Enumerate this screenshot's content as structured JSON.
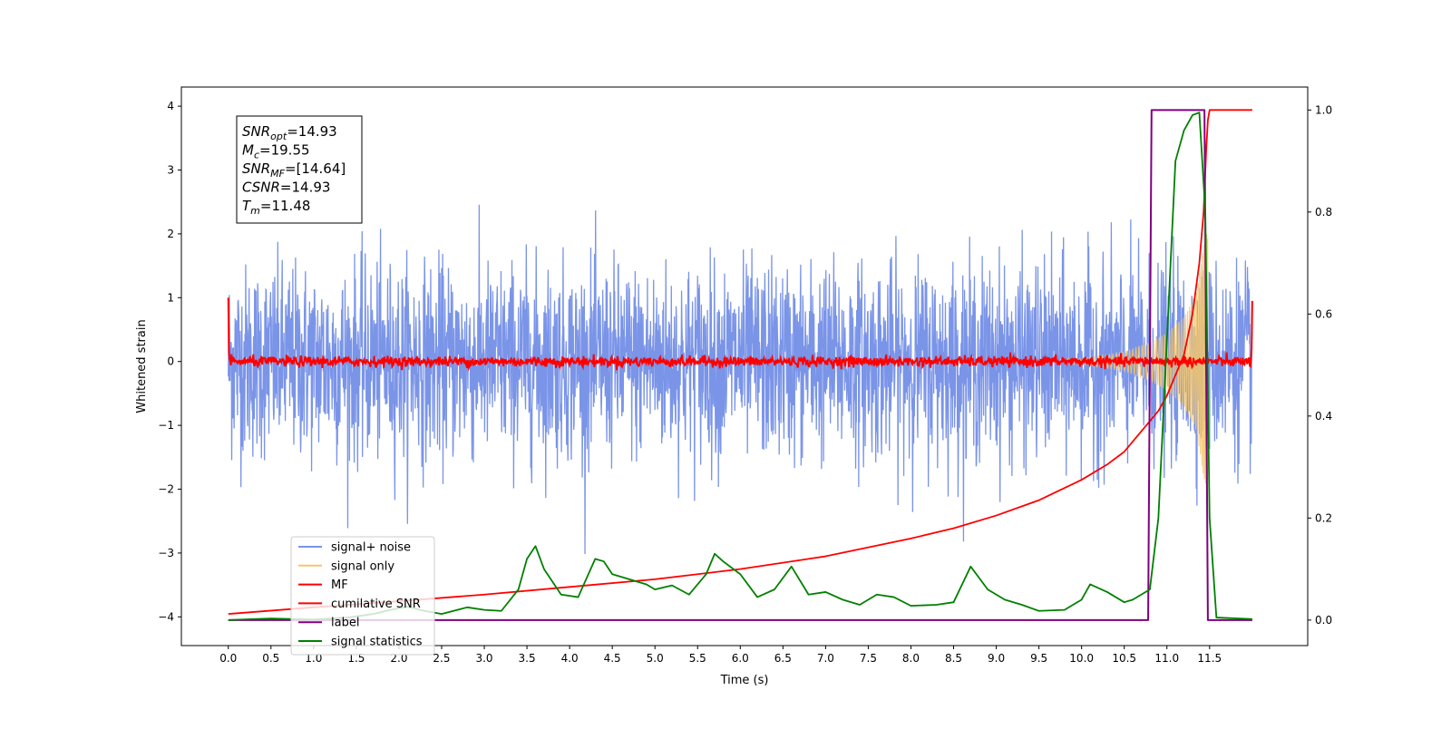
{
  "chart_data": {
    "type": "line",
    "xlabel": "Time (s)",
    "ylabel": "Whitened strain",
    "xlim": [
      -0.55,
      12.65
    ],
    "ylim_left": [
      -4.45,
      4.3
    ],
    "ylim_right": [
      -0.05,
      1.045
    ],
    "x_ticks": [
      0.0,
      0.5,
      1.0,
      1.5,
      2.0,
      2.5,
      3.0,
      3.5,
      4.0,
      4.5,
      5.0,
      5.5,
      6.0,
      6.5,
      7.0,
      7.5,
      8.0,
      8.5,
      9.0,
      9.5,
      10.0,
      10.5,
      11.0,
      11.5
    ],
    "x_tick_labels": [
      "0.0",
      "0.5",
      "1.0",
      "1.5",
      "2.0",
      "2.5",
      "3.0",
      "3.5",
      "4.0",
      "4.5",
      "5.0",
      "5.5",
      "6.0",
      "6.5",
      "7.0",
      "7.5",
      "8.0",
      "8.5",
      "9.0",
      "9.5",
      "10.0",
      "10.5",
      "11.0",
      "11.5"
    ],
    "y_ticks_left": [
      -4,
      -3,
      -2,
      -1,
      0,
      1,
      2,
      3,
      4
    ],
    "y_tick_labels_left": [
      "−4",
      "−3",
      "−2",
      "−1",
      "0",
      "1",
      "2",
      "3",
      "4"
    ],
    "y_ticks_right": [
      0.0,
      0.2,
      0.4,
      0.6,
      0.8,
      1.0
    ],
    "y_tick_labels_right": [
      "0.0",
      "0.2",
      "0.4",
      "0.6",
      "0.8",
      "1.0"
    ],
    "grid": false,
    "legend_position": "bottom-left",
    "annotation": {
      "lines": [
        {
          "base": "SNR",
          "sub": "opt",
          "value": "=14.93"
        },
        {
          "base": "M",
          "sub": "c",
          "value": "=19.55"
        },
        {
          "base": "SNR",
          "sub": "MF",
          "value": "=[14.64]"
        },
        {
          "base": "CSNR",
          "sub": "",
          "value": "=14.93"
        },
        {
          "base": "T",
          "sub": "m",
          "value": "=11.48"
        }
      ]
    },
    "series": [
      {
        "name": "signal+ noise",
        "axis": "left",
        "color": "#7a94e8",
        "noise_sigma": 0.75,
        "x_range": [
          0.0,
          12.0
        ]
      },
      {
        "name": "signal only",
        "axis": "left",
        "color": "#f5c56a",
        "chirp_envelope": [
          [
            10.0,
            0.05
          ],
          [
            10.5,
            0.15
          ],
          [
            10.8,
            0.3
          ],
          [
            11.0,
            0.45
          ],
          [
            11.2,
            0.7
          ],
          [
            11.35,
            1.1
          ],
          [
            11.45,
            2.0
          ]
        ]
      },
      {
        "name": "MF",
        "axis": "left",
        "color": "#ff0000",
        "noise_sigma": 0.04,
        "x_range": [
          0.0,
          12.0
        ],
        "edge_values": [
          [
            0.0,
            1.0
          ],
          [
            12.0,
            0.95
          ]
        ]
      },
      {
        "name": "cumilative SNR",
        "axis": "right",
        "color": "#ff0000",
        "points": [
          [
            0.0,
            0.012
          ],
          [
            1.0,
            0.025
          ],
          [
            2.0,
            0.037
          ],
          [
            3.0,
            0.05
          ],
          [
            4.0,
            0.065
          ],
          [
            5.0,
            0.08
          ],
          [
            6.0,
            0.1
          ],
          [
            7.0,
            0.125
          ],
          [
            8.0,
            0.16
          ],
          [
            8.5,
            0.18
          ],
          [
            9.0,
            0.205
          ],
          [
            9.5,
            0.235
          ],
          [
            10.0,
            0.275
          ],
          [
            10.3,
            0.305
          ],
          [
            10.5,
            0.33
          ],
          [
            10.7,
            0.37
          ],
          [
            10.9,
            0.41
          ],
          [
            11.0,
            0.44
          ],
          [
            11.1,
            0.48
          ],
          [
            11.2,
            0.52
          ],
          [
            11.3,
            0.6
          ],
          [
            11.38,
            0.7
          ],
          [
            11.43,
            0.8
          ],
          [
            11.46,
            0.92
          ],
          [
            11.48,
            0.98
          ],
          [
            11.5,
            1.0
          ],
          [
            12.0,
            1.0
          ]
        ]
      },
      {
        "name": "label",
        "axis": "right",
        "color": "#800080",
        "points": [
          [
            0.0,
            0.0
          ],
          [
            10.78,
            0.0
          ],
          [
            10.82,
            1.0
          ],
          [
            11.44,
            1.0
          ],
          [
            11.48,
            0.0
          ],
          [
            12.0,
            0.0
          ]
        ]
      },
      {
        "name": "signal statistics",
        "axis": "right",
        "color": "#008000",
        "points": [
          [
            0.0,
            0.0
          ],
          [
            0.3,
            0.002
          ],
          [
            0.5,
            0.003
          ],
          [
            1.0,
            0.001
          ],
          [
            1.4,
            0.005
          ],
          [
            1.7,
            0.012
          ],
          [
            1.9,
            0.02
          ],
          [
            2.1,
            0.026
          ],
          [
            2.3,
            0.018
          ],
          [
            2.5,
            0.012
          ],
          [
            2.8,
            0.025
          ],
          [
            3.0,
            0.02
          ],
          [
            3.2,
            0.018
          ],
          [
            3.4,
            0.06
          ],
          [
            3.5,
            0.12
          ],
          [
            3.6,
            0.145
          ],
          [
            3.7,
            0.1
          ],
          [
            3.9,
            0.05
          ],
          [
            4.1,
            0.045
          ],
          [
            4.3,
            0.12
          ],
          [
            4.4,
            0.115
          ],
          [
            4.5,
            0.09
          ],
          [
            4.7,
            0.08
          ],
          [
            4.9,
            0.07
          ],
          [
            5.0,
            0.06
          ],
          [
            5.2,
            0.068
          ],
          [
            5.4,
            0.05
          ],
          [
            5.6,
            0.09
          ],
          [
            5.7,
            0.13
          ],
          [
            5.8,
            0.115
          ],
          [
            6.0,
            0.09
          ],
          [
            6.2,
            0.045
          ],
          [
            6.4,
            0.06
          ],
          [
            6.6,
            0.105
          ],
          [
            6.8,
            0.05
          ],
          [
            7.0,
            0.055
          ],
          [
            7.2,
            0.04
          ],
          [
            7.4,
            0.03
          ],
          [
            7.6,
            0.05
          ],
          [
            7.8,
            0.045
          ],
          [
            8.0,
            0.028
          ],
          [
            8.3,
            0.03
          ],
          [
            8.5,
            0.035
          ],
          [
            8.7,
            0.105
          ],
          [
            8.9,
            0.06
          ],
          [
            9.1,
            0.04
          ],
          [
            9.3,
            0.03
          ],
          [
            9.5,
            0.018
          ],
          [
            9.8,
            0.02
          ],
          [
            10.0,
            0.04
          ],
          [
            10.1,
            0.07
          ],
          [
            10.3,
            0.055
          ],
          [
            10.5,
            0.035
          ],
          [
            10.6,
            0.04
          ],
          [
            10.8,
            0.06
          ],
          [
            10.9,
            0.2
          ],
          [
            11.0,
            0.55
          ],
          [
            11.1,
            0.9
          ],
          [
            11.2,
            0.96
          ],
          [
            11.3,
            0.99
          ],
          [
            11.38,
            0.995
          ],
          [
            11.45,
            0.8
          ],
          [
            11.5,
            0.2
          ],
          [
            11.58,
            0.005
          ],
          [
            12.0,
            0.002
          ]
        ]
      }
    ]
  }
}
